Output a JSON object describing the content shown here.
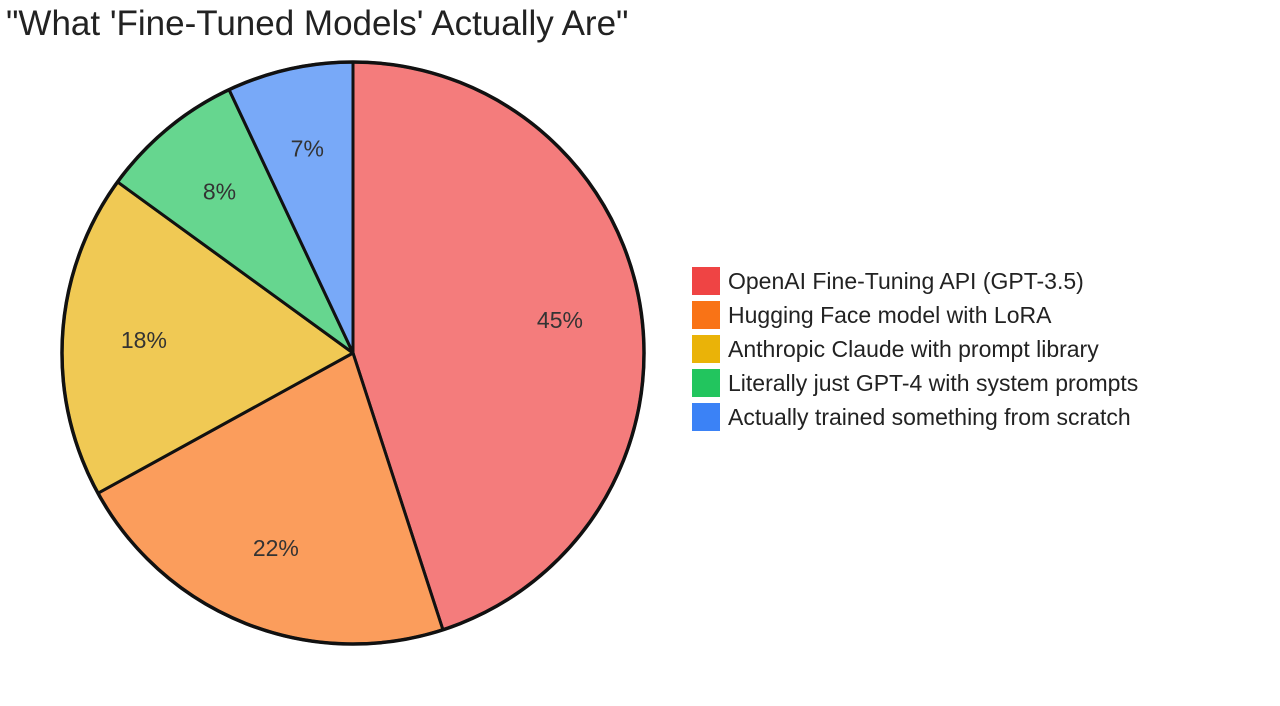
{
  "chart_data": {
    "type": "pie",
    "title": "\"What 'Fine-Tuned Models' Actually Are\"",
    "legend_position": "right",
    "slices": [
      {
        "label": "OpenAI Fine-Tuning API (GPT-3.5)",
        "value": 45,
        "display": "45%",
        "color": "#f47c7c",
        "legend_color": "#ef4444"
      },
      {
        "label": "Hugging Face model with LoRA",
        "value": 22,
        "display": "22%",
        "color": "#fb9d5c",
        "legend_color": "#f97316"
      },
      {
        "label": "Anthropic Claude with prompt library",
        "value": 18,
        "display": "18%",
        "color": "#f0c954",
        "legend_color": "#eab308"
      },
      {
        "label": "Literally just GPT-4 with system prompts",
        "value": 8,
        "display": "8%",
        "color": "#66d68f",
        "legend_color": "#22c55e"
      },
      {
        "label": "Actually trained something from scratch",
        "value": 7,
        "display": "7%",
        "color": "#78a9f8",
        "legend_color": "#3b82f6"
      }
    ]
  }
}
